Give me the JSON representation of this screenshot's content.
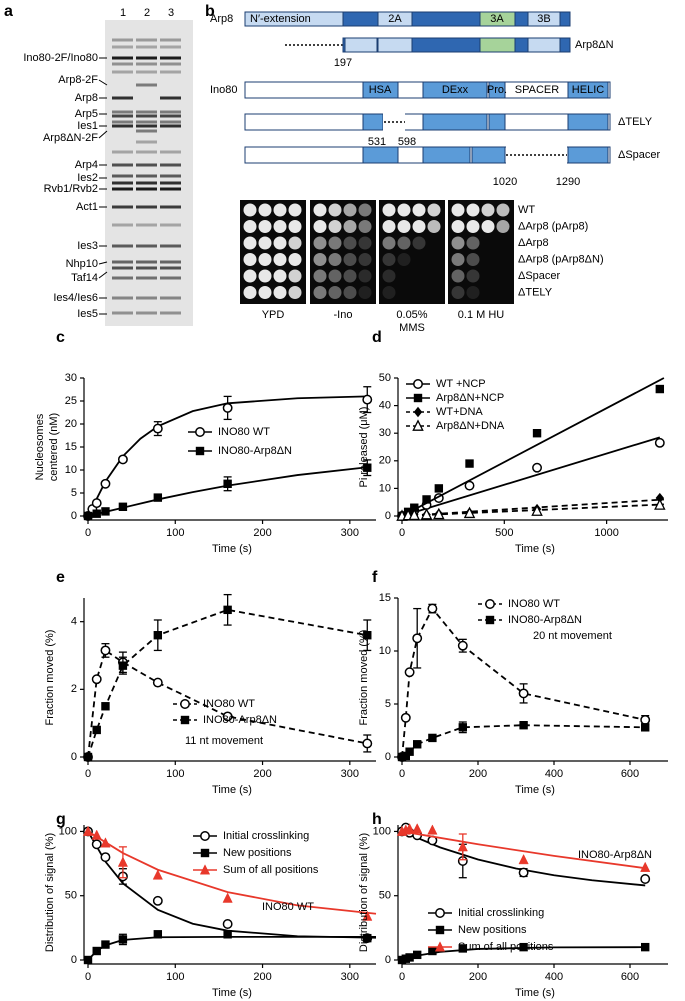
{
  "panel_labels": [
    "a",
    "b",
    "c",
    "d",
    "e",
    "f",
    "g",
    "h"
  ],
  "gel": {
    "lanes": [
      "1",
      "2",
      "3"
    ],
    "proteins": [
      "Ino80-2F/Ino80",
      "Arp8-2F",
      "Arp8",
      "Arp5",
      "Ies1",
      "Arp8ΔN-2F",
      "Arp4",
      "Ies2",
      "Rvb1/Rvb2",
      "Act1",
      "Ies3",
      "Nhp10",
      "Taf14",
      "Ies4/Ies6",
      "Ies5"
    ]
  },
  "domains": {
    "arp8": {
      "name": "Arp8",
      "regions": [
        "N′-extension",
        "2A",
        "3A",
        "3B"
      ]
    },
    "arp8_dn": {
      "name": "Arp8ΔN",
      "start": 197
    },
    "ino80": {
      "name": "Ino80",
      "regions": [
        "HSA",
        "DExx",
        "Pro.",
        "SPACER",
        "HELIC"
      ]
    },
    "dtely": {
      "name": "ΔTELY",
      "from": 531,
      "to": 598
    },
    "dspacer": {
      "name": "ΔSpacer",
      "from": 1020,
      "to": 1290
    }
  },
  "growth_assay": {
    "strains": [
      "WT",
      "ΔArp8 (pArp8)",
      "ΔArp8",
      "ΔArp8 (pArp8ΔN)",
      "ΔSpacer",
      "ΔTELY"
    ],
    "conditions": [
      [
        "YPD"
      ],
      [
        "-Ino"
      ],
      [
        "0.05%",
        "MMS"
      ],
      [
        "0.1 M HU"
      ]
    ]
  },
  "chart_data": [
    {
      "type": "line",
      "x_label": "Time (s)",
      "y_label": [
        "Nucleosomes",
        "centered (nM)"
      ],
      "xlim": [
        0,
        330
      ],
      "xticks": [
        0,
        100,
        200,
        300
      ],
      "ylim": [
        0,
        30
      ],
      "yticks": [
        0,
        5,
        10,
        15,
        20,
        25,
        30
      ],
      "series": [
        {
          "name": "INO80 WT",
          "marker": "open-circle",
          "color": "#000000",
          "x": [
            0,
            5,
            10,
            20,
            40,
            80,
            160,
            320
          ],
          "values": [
            0,
            1.5,
            2.8,
            7,
            12.3,
            19,
            23.5,
            25.3
          ],
          "errors": [
            null,
            null,
            null,
            null,
            null,
            1.5,
            2.5,
            2.8
          ],
          "fit": {
            "x": [
              0,
              20,
              40,
              60,
              80,
              120,
              160,
              240,
              320
            ],
            "values": [
              0,
              7.5,
              13,
              16.8,
              19.5,
              22.8,
              24.5,
              25.6,
              26
            ]
          }
        },
        {
          "name": "INO80-Arp8ΔN",
          "marker": "square",
          "color": "#000000",
          "x": [
            0,
            10,
            20,
            40,
            80,
            160,
            320
          ],
          "values": [
            0,
            0.5,
            1,
            2,
            4,
            7,
            10.5
          ],
          "errors": [
            null,
            null,
            null,
            null,
            null,
            1.5,
            1.7
          ],
          "fit": {
            "x": [
              0,
              40,
              80,
              120,
              160,
              240,
              320
            ],
            "values": [
              0,
              1.8,
              3.6,
              5.2,
              6.6,
              8.9,
              10.6
            ]
          }
        }
      ]
    },
    {
      "type": "line",
      "x_label": "Time (s)",
      "y_label": "Pi released (μM)",
      "xlim": [
        0,
        1300
      ],
      "xticks": [
        0,
        500,
        1000
      ],
      "ylim": [
        0,
        50
      ],
      "yticks": [
        0,
        10,
        20,
        30,
        40,
        50
      ],
      "series": [
        {
          "name": "WT +NCP",
          "marker": "open-circle",
          "color": "#000000",
          "x": [
            0,
            30,
            60,
            120,
            180,
            330,
            660,
            1260
          ],
          "values": [
            0,
            1,
            2,
            4,
            6.5,
            11,
            17.5,
            26.5
          ],
          "fit": {
            "x": [
              0,
              1260
            ],
            "values": [
              0,
              28.5
            ]
          }
        },
        {
          "name": "Arp8ΔN+NCP",
          "marker": "square",
          "color": "#000000",
          "x": [
            0,
            30,
            60,
            120,
            180,
            330,
            660,
            1260
          ],
          "values": [
            0,
            1.5,
            3,
            6,
            10,
            19,
            30,
            46
          ],
          "fit": {
            "x": [
              0,
              1280
            ],
            "values": [
              0,
              50
            ]
          }
        },
        {
          "name": "WT+DNA",
          "marker": "diamond",
          "color": "#000000",
          "x": [
            0,
            30,
            60,
            120,
            180,
            330,
            660,
            1260
          ],
          "values": [
            0,
            0.2,
            0.5,
            0.5,
            0.8,
            1.2,
            2.5,
            6.5
          ],
          "fit": {
            "x": [
              0,
              1280
            ],
            "values": [
              0,
              6
            ]
          },
          "fit_style": "dashed"
        },
        {
          "name": "Arp8ΔN+DNA",
          "marker": "open-triangle",
          "color": "#000000",
          "x": [
            0,
            30,
            60,
            120,
            180,
            330,
            660,
            1260
          ],
          "values": [
            0,
            0.2,
            0.3,
            0.5,
            0.6,
            1,
            1.8,
            4
          ],
          "fit": {
            "x": [
              0,
              1280
            ],
            "values": [
              0,
              4.2
            ]
          },
          "fit_style": "dashed"
        }
      ]
    },
    {
      "type": "line",
      "x_label": "Time (s)",
      "y_label": "Fraction moved (%)",
      "annotation": "11 nt movement",
      "xlim": [
        0,
        330
      ],
      "xticks": [
        0,
        100,
        200,
        300
      ],
      "ylim": [
        0,
        4.7
      ],
      "yticks": [
        0,
        2,
        4
      ],
      "series": [
        {
          "name": "INO80 WT",
          "marker": "open-circle",
          "color": "#000000",
          "line": "dashed",
          "x": [
            0,
            10,
            20,
            40,
            80,
            160,
            320
          ],
          "values": [
            0,
            2.3,
            3.15,
            2.8,
            2.2,
            1.2,
            0.4
          ],
          "errors": [
            null,
            null,
            0.2,
            0.3,
            null,
            null,
            0.25
          ]
        },
        {
          "name": "INO80-Arp8ΔN",
          "marker": "square",
          "color": "#000000",
          "line": "dashed",
          "x": [
            0,
            10,
            20,
            40,
            80,
            160,
            320
          ],
          "values": [
            0,
            0.8,
            1.5,
            2.7,
            3.6,
            4.35,
            3.6
          ],
          "errors": [
            null,
            null,
            null,
            0.25,
            0.45,
            0.45,
            0.45
          ]
        }
      ]
    },
    {
      "type": "line",
      "x_label": "Time (s)",
      "y_label": "Fraction moved (%)",
      "annotation": "20 nt movement",
      "xlim": [
        0,
        700
      ],
      "xticks": [
        0,
        200,
        400,
        600
      ],
      "ylim": [
        0,
        15
      ],
      "yticks": [
        0,
        5,
        10,
        15
      ],
      "series": [
        {
          "name": "INO80 WT",
          "marker": "open-circle",
          "color": "#000000",
          "line": "dashed",
          "x": [
            0,
            10,
            20,
            40,
            80,
            160,
            320,
            640
          ],
          "values": [
            0,
            3.7,
            8,
            11.2,
            14,
            10.5,
            6,
            3.5
          ],
          "errors": [
            null,
            null,
            null,
            2.8,
            0.4,
            0.6,
            0.9,
            0.4
          ]
        },
        {
          "name": "INO80-Arp8ΔN",
          "marker": "square",
          "color": "#000000",
          "line": "dashed",
          "x": [
            0,
            10,
            20,
            40,
            80,
            160,
            320,
            640
          ],
          "values": [
            0,
            0.1,
            0.5,
            1.2,
            1.8,
            2.8,
            3,
            2.8
          ],
          "errors": [
            null,
            null,
            null,
            null,
            null,
            0.5,
            null,
            null
          ]
        }
      ]
    },
    {
      "type": "line",
      "x_label": "Time (s)",
      "y_label": "Distribution of signal (%)",
      "annotation": "INO80 WT",
      "xlim": [
        0,
        330
      ],
      "xticks": [
        0,
        100,
        200,
        300
      ],
      "ylim": [
        0,
        105
      ],
      "yticks": [
        0,
        50,
        100
      ],
      "series": [
        {
          "name": "Initial crosslinking",
          "marker": "open-circle",
          "color": "#000000",
          "x": [
            0,
            10,
            20,
            40,
            80,
            160,
            320
          ],
          "values": [
            100,
            90,
            80,
            65,
            46,
            28,
            17
          ],
          "errors": [
            null,
            null,
            null,
            6,
            null,
            null,
            null
          ],
          "fit": {
            "x": [
              0,
              20,
              40,
              80,
              120,
              160,
              240,
              330
            ],
            "values": [
              100,
              76.5,
              59.6,
              39,
              28.2,
              22.8,
              18.5,
              17.3
            ]
          }
        },
        {
          "name": "New positions",
          "marker": "square",
          "color": "#000000",
          "x": [
            0,
            10,
            20,
            40,
            80,
            160,
            320
          ],
          "values": [
            0,
            7,
            12,
            16,
            20,
            20,
            17
          ],
          "errors": [
            null,
            null,
            null,
            4,
            null,
            null,
            null
          ],
          "fit": {
            "x": [
              0,
              10,
              20,
              40,
              80,
              160,
              330
            ],
            "values": [
              0,
              7.1,
              11.4,
              15.6,
              17.7,
              18,
              18
            ]
          }
        },
        {
          "name": "Sum of all positions",
          "marker": "triangle",
          "color": "#e8382b",
          "x": [
            0,
            10,
            20,
            40,
            80,
            160,
            320
          ],
          "values": [
            100,
            97,
            91,
            76,
            66,
            48,
            34
          ],
          "errors": [
            null,
            null,
            null,
            12,
            null,
            null,
            null
          ],
          "fit": {
            "x": [
              0,
              40,
              80,
              160,
              240,
              330
            ],
            "values": [
              100,
              83.2,
              70.2,
              52.8,
              42.5,
              36
            ]
          }
        }
      ]
    },
    {
      "type": "line",
      "x_label": "Time (s)",
      "y_label": "Distribution of signal (%)",
      "annotation": "INO80-Arp8ΔN",
      "xlim": [
        0,
        700
      ],
      "xticks": [
        0,
        200,
        400,
        600
      ],
      "ylim": [
        0,
        105
      ],
      "yticks": [
        0,
        50,
        100
      ],
      "series": [
        {
          "name": "Initial crosslinking",
          "marker": "open-circle",
          "color": "#000000",
          "x": [
            0,
            10,
            20,
            40,
            80,
            160,
            320,
            640
          ],
          "values": [
            100,
            103,
            99,
            97,
            93,
            77,
            68,
            63
          ],
          "errors": [
            null,
            null,
            null,
            null,
            null,
            13,
            3,
            null
          ],
          "fit": {
            "x": [
              0,
              100,
              200,
              300,
              400,
              500,
              640
            ],
            "values": [
              100,
              87.6,
              78.2,
              71.2,
              65.9,
              62,
              58
            ]
          }
        },
        {
          "name": "New positions",
          "marker": "square",
          "color": "#000000",
          "x": [
            0,
            10,
            20,
            40,
            80,
            160,
            320,
            640
          ],
          "values": [
            0,
            1,
            2,
            4,
            7,
            9,
            10,
            10
          ],
          "fit": {
            "x": [
              0,
              50,
              100,
              200,
              400,
              640
            ],
            "values": [
              0,
              3.9,
              6.3,
              8.6,
              9.8,
              10
            ]
          }
        },
        {
          "name": "Sum of all positions",
          "marker": "triangle",
          "color": "#e8382b",
          "x": [
            0,
            10,
            20,
            40,
            80,
            160,
            320,
            640
          ],
          "values": [
            100,
            101,
            102,
            102,
            101,
            88,
            78,
            72
          ],
          "errors": [
            null,
            null,
            null,
            null,
            null,
            10,
            null,
            null
          ],
          "fit": {
            "x": [
              0,
              200,
              400,
              640
            ],
            "values": [
              100,
              90,
              81,
              71.4
            ]
          }
        }
      ]
    }
  ]
}
